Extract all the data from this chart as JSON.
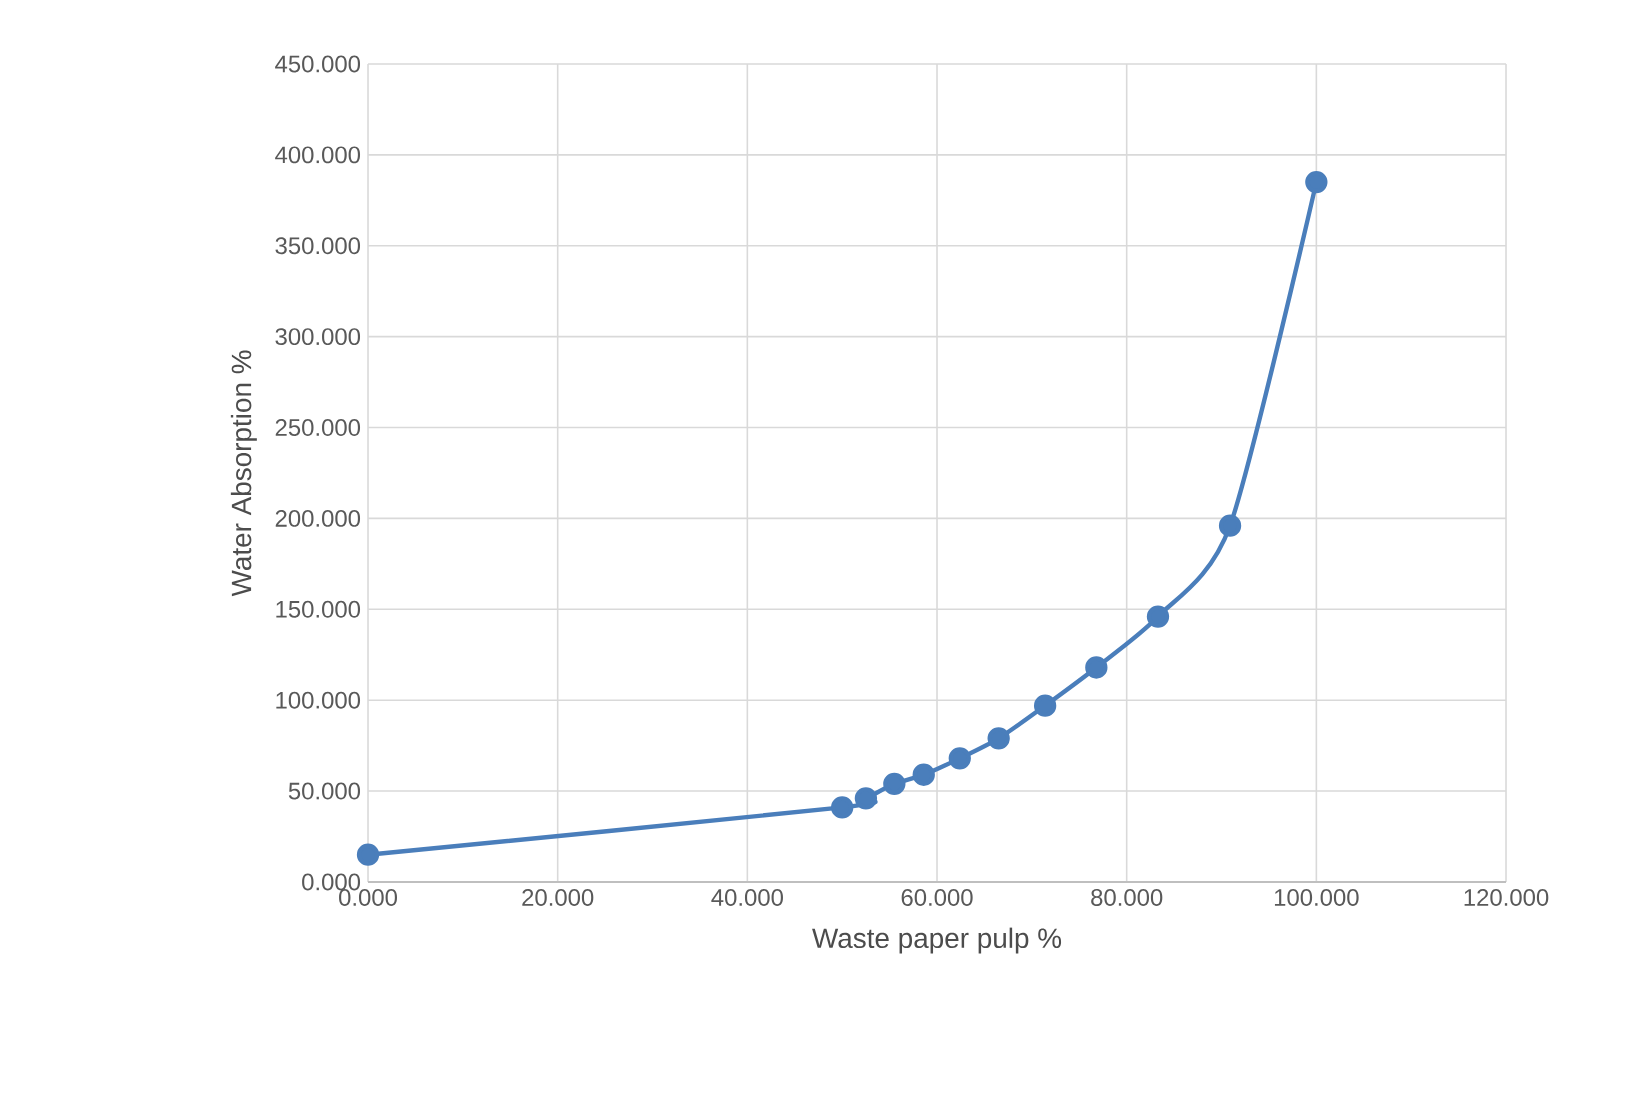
{
  "chart_data": {
    "type": "line",
    "xlabel": "Waste paper pulp %",
    "ylabel": "Water Absorption %",
    "x": [
      0,
      50,
      52.5,
      55.5,
      58.6,
      62.4,
      66.5,
      71.4,
      76.8,
      83.3,
      90.9,
      100
    ],
    "series": [
      {
        "color": "#4a7ebb",
        "values": [
          15,
          41,
          46,
          54,
          59,
          68,
          79,
          97,
          118,
          146,
          196,
          385
        ]
      }
    ],
    "xlim": [
      0,
      120
    ],
    "ylim": [
      0,
      450
    ],
    "xticks": [
      {
        "value": 0,
        "label": "0.000"
      },
      {
        "value": 20,
        "label": "20.000"
      },
      {
        "value": 40,
        "label": "40.000"
      },
      {
        "value": 60,
        "label": "60.000"
      },
      {
        "value": 80,
        "label": "80.000"
      },
      {
        "value": 100,
        "label": "100.000"
      },
      {
        "value": 120,
        "label": "120.000"
      }
    ],
    "yticks": [
      {
        "value": 0,
        "label": "0.000"
      },
      {
        "value": 50,
        "label": "50.000"
      },
      {
        "value": 100,
        "label": "100.000"
      },
      {
        "value": 150,
        "label": "150.000"
      },
      {
        "value": 200,
        "label": "200.000"
      },
      {
        "value": 250,
        "label": "250.000"
      },
      {
        "value": 300,
        "label": "300.000"
      },
      {
        "value": 350,
        "label": "350.000"
      },
      {
        "value": 400,
        "label": "400.000"
      },
      {
        "value": 450,
        "label": "450.000"
      }
    ],
    "grid": true,
    "marker": "circle",
    "line_style": "solid"
  }
}
